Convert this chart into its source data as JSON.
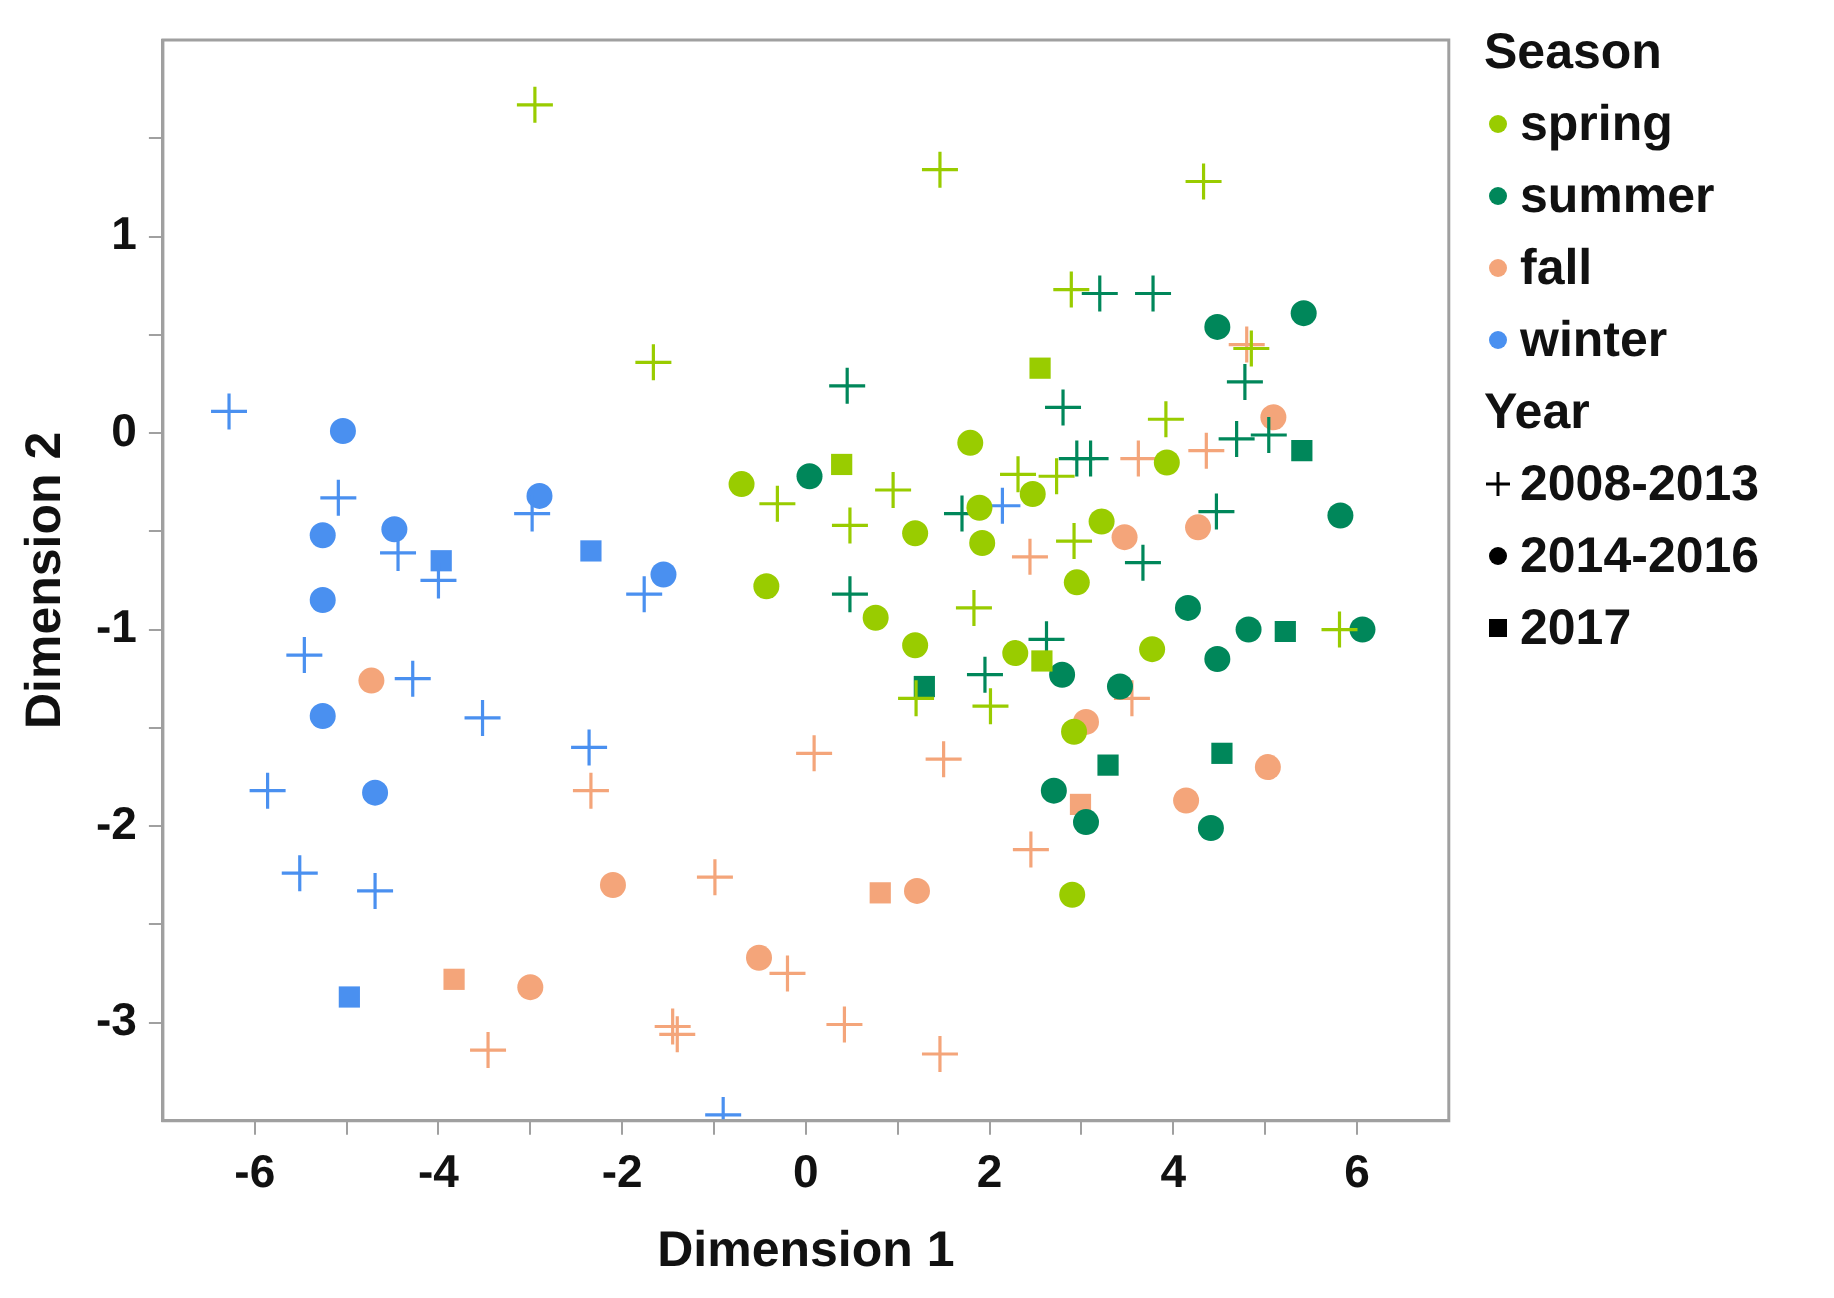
{
  "chart_data": {
    "type": "scatter",
    "xlabel": "Dimension 1",
    "ylabel": "Dimension 2",
    "xlim": [
      -7,
      7
    ],
    "ylim": [
      -3.5,
      2
    ],
    "xticks": [
      -6,
      {
        "value": -5,
        "label": null
      },
      -4,
      {
        "value": -3,
        "label": null
      },
      -2,
      {
        "value": -1,
        "label": null
      },
      0,
      {
        "value": 1,
        "label": null
      },
      2,
      {
        "value": 3,
        "label": null
      },
      4,
      {
        "value": 5,
        "label": null
      },
      6
    ],
    "yticks": [
      -3,
      {
        "value": -2.5,
        "label": null
      },
      -2,
      {
        "value": -1.5,
        "label": null
      },
      -1,
      {
        "value": -0.5,
        "label": null
      },
      0,
      {
        "value": 0.5,
        "label": null
      },
      1,
      {
        "value": 1.5,
        "label": null
      }
    ],
    "grid": false,
    "legend": "right",
    "legend_title": "Season",
    "annotations": [
      "Year"
    ],
    "series": [
      {
        "color": "#99cc00",
        "marker": "cross",
        "x": [
          -2.95,
          -1.66,
          1.46,
          4.33,
          2.89,
          3.92,
          -0.31,
          0.95,
          0.48,
          2.31,
          2.73,
          2.92,
          1.83,
          1.2,
          2.01,
          5.81,
          4.85
        ],
        "values": [
          1.67,
          0.36,
          1.34,
          1.28,
          0.73,
          0.07,
          -0.36,
          -0.29,
          -0.47,
          -0.21,
          -0.22,
          -0.55,
          -0.89,
          -1.35,
          -1.39,
          -1.0,
          0.43
        ]
      },
      {
        "color": "#99cc00",
        "marker": "circle",
        "x": [
          -0.7,
          -0.43,
          0.76,
          1.19,
          1.19,
          1.79,
          1.89,
          1.92,
          2.28,
          2.47,
          3.22,
          2.95,
          3.93,
          3.77,
          2.92,
          2.9
        ],
        "values": [
          -0.26,
          -0.78,
          -0.94,
          -0.51,
          -1.08,
          -0.05,
          -0.38,
          -0.56,
          -1.12,
          -0.31,
          -0.45,
          -0.76,
          -0.15,
          -1.1,
          -1.52,
          -2.35
        ]
      },
      {
        "color": "#99cc00",
        "marker": "square",
        "x": [
          0.39,
          2.55,
          2.57
        ],
        "values": [
          -0.16,
          0.33,
          -1.16
        ]
      },
      {
        "color": "#00875a",
        "marker": "cross",
        "x": [
          0.45,
          3.2,
          3.78,
          2.8,
          2.95,
          3.1,
          4.78,
          4.69,
          5.04,
          4.47,
          1.7,
          0.48,
          3.67,
          2.62,
          1.95
        ],
        "values": [
          0.24,
          0.71,
          0.71,
          0.13,
          -0.13,
          -0.13,
          0.26,
          -0.03,
          -0.01,
          -0.4,
          -0.41,
          -0.82,
          -0.66,
          -1.05,
          -1.23
        ]
      },
      {
        "color": "#00875a",
        "marker": "circle",
        "x": [
          0.04,
          4.48,
          5.42,
          5.82,
          6.06,
          4.82,
          4.48,
          4.16,
          2.79,
          3.42,
          2.7,
          3.05,
          4.41
        ],
        "values": [
          -0.22,
          0.54,
          0.61,
          -0.42,
          -1.0,
          -1.0,
          -1.15,
          -0.89,
          -1.23,
          -1.29,
          -1.82,
          -1.98,
          -2.01
        ]
      },
      {
        "color": "#00875a",
        "marker": "square",
        "x": [
          5.4,
          5.22,
          1.29,
          3.29,
          4.53
        ],
        "values": [
          -0.09,
          -1.01,
          -1.29,
          -1.69,
          -1.63
        ]
      },
      {
        "color": "#f4a57a",
        "marker": "cross",
        "x": [
          4.36,
          3.62,
          2.44,
          3.55,
          0.09,
          1.5,
          2.45,
          -0.99,
          -0.2,
          0.42,
          1.46,
          -1.45,
          -1.4,
          -3.46,
          -2.34,
          4.8
        ],
        "values": [
          -0.09,
          -0.13,
          -0.63,
          -1.35,
          -1.63,
          -1.66,
          -2.12,
          -2.26,
          -2.75,
          -3.01,
          -3.16,
          -3.02,
          -3.06,
          -3.14,
          -1.82,
          0.45
        ]
      },
      {
        "color": "#f4a57a",
        "marker": "circle",
        "x": [
          5.09,
          3.47,
          4.27,
          3.05,
          5.03,
          4.14,
          -4.73,
          -2.1,
          1.21,
          -0.51,
          -3.0
        ],
        "values": [
          0.08,
          -0.53,
          -0.48,
          -1.47,
          -1.7,
          -1.87,
          -1.26,
          -2.3,
          -2.33,
          -2.67,
          -2.82
        ]
      },
      {
        "color": "#f4a57a",
        "marker": "square",
        "x": [
          0.81,
          2.99,
          -3.83
        ],
        "values": [
          -2.34,
          -1.89,
          -2.78
        ]
      },
      {
        "color": "#4a90f0",
        "marker": "cross",
        "x": [
          -6.28,
          -5.09,
          -2.98,
          -4.44,
          -4.0,
          -1.76,
          -5.46,
          -4.28,
          -3.52,
          -2.36,
          -5.86,
          -5.51,
          -4.69,
          -0.9,
          2.14
        ],
        "values": [
          0.11,
          -0.33,
          -0.41,
          -0.61,
          -0.75,
          -0.82,
          -1.13,
          -1.25,
          -1.45,
          -1.6,
          -1.82,
          -2.24,
          -2.33,
          -3.47,
          -0.37
        ]
      },
      {
        "color": "#4a90f0",
        "marker": "circle",
        "x": [
          -5.04,
          -5.26,
          -4.48,
          -2.9,
          -1.55,
          -5.26,
          -5.26,
          -4.69
        ],
        "values": [
          0.01,
          -0.52,
          -0.49,
          -0.32,
          -0.72,
          -0.85,
          -1.44,
          -1.83
        ]
      },
      {
        "color": "#4a90f0",
        "marker": "square",
        "x": [
          -3.97,
          -2.34,
          -4.97
        ],
        "values": [
          -0.65,
          -0.6,
          -2.87
        ]
      },
      {
        "name": "spring",
        "color": "#99cc00"
      },
      {
        "name": "summer",
        "color": "#00875a"
      },
      {
        "name": "fall",
        "color": "#f4a57a"
      },
      {
        "name": "winter",
        "color": "#4a90f0"
      },
      {
        "name": "2008-2013",
        "color": "#000000",
        "marker": "cross"
      },
      {
        "name": "2014-2016",
        "color": "#000000",
        "marker": "circle"
      },
      {
        "name": "2017",
        "color": "#000000",
        "marker": "square"
      }
    ]
  }
}
